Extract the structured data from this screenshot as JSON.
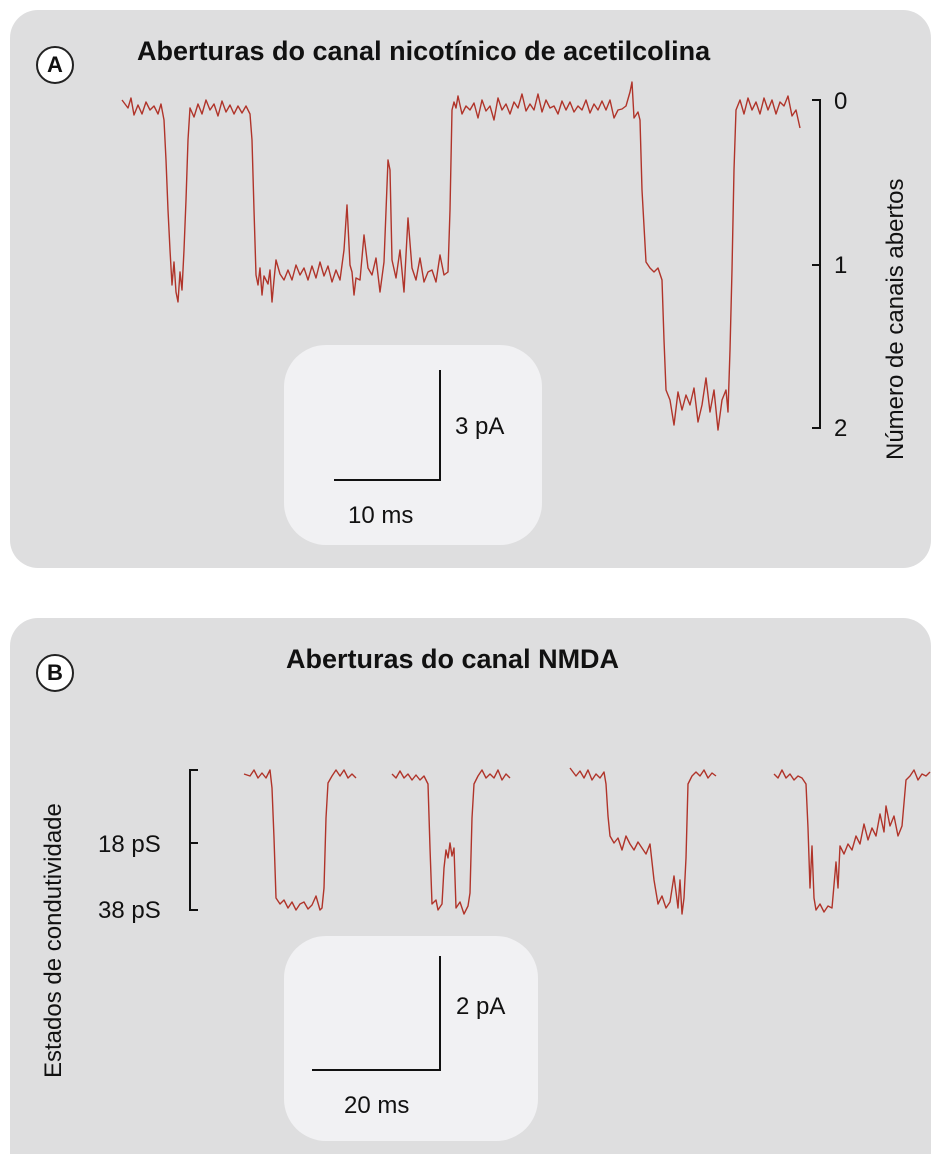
{
  "panel_a": {
    "badge": "A",
    "title": "Aberturas do canal nicotínico de acetilcolina",
    "right_axis_label": "Número de canais abertos",
    "right_axis_ticks": [
      "0",
      "1",
      "2"
    ],
    "scale_current": "3 pA",
    "scale_time": "10 ms"
  },
  "panel_b": {
    "badge": "B",
    "title": "Aberturas do canal NMDA",
    "left_axis_label": "Estados de condutividade",
    "left_axis_ticks": [
      "18 pS",
      "38 pS"
    ],
    "scale_current": "2 pA",
    "scale_time": "20 ms"
  },
  "colors": {
    "trace": "#b0342a",
    "panel": "#dededf",
    "scalebox": "#f1f1f3"
  }
}
